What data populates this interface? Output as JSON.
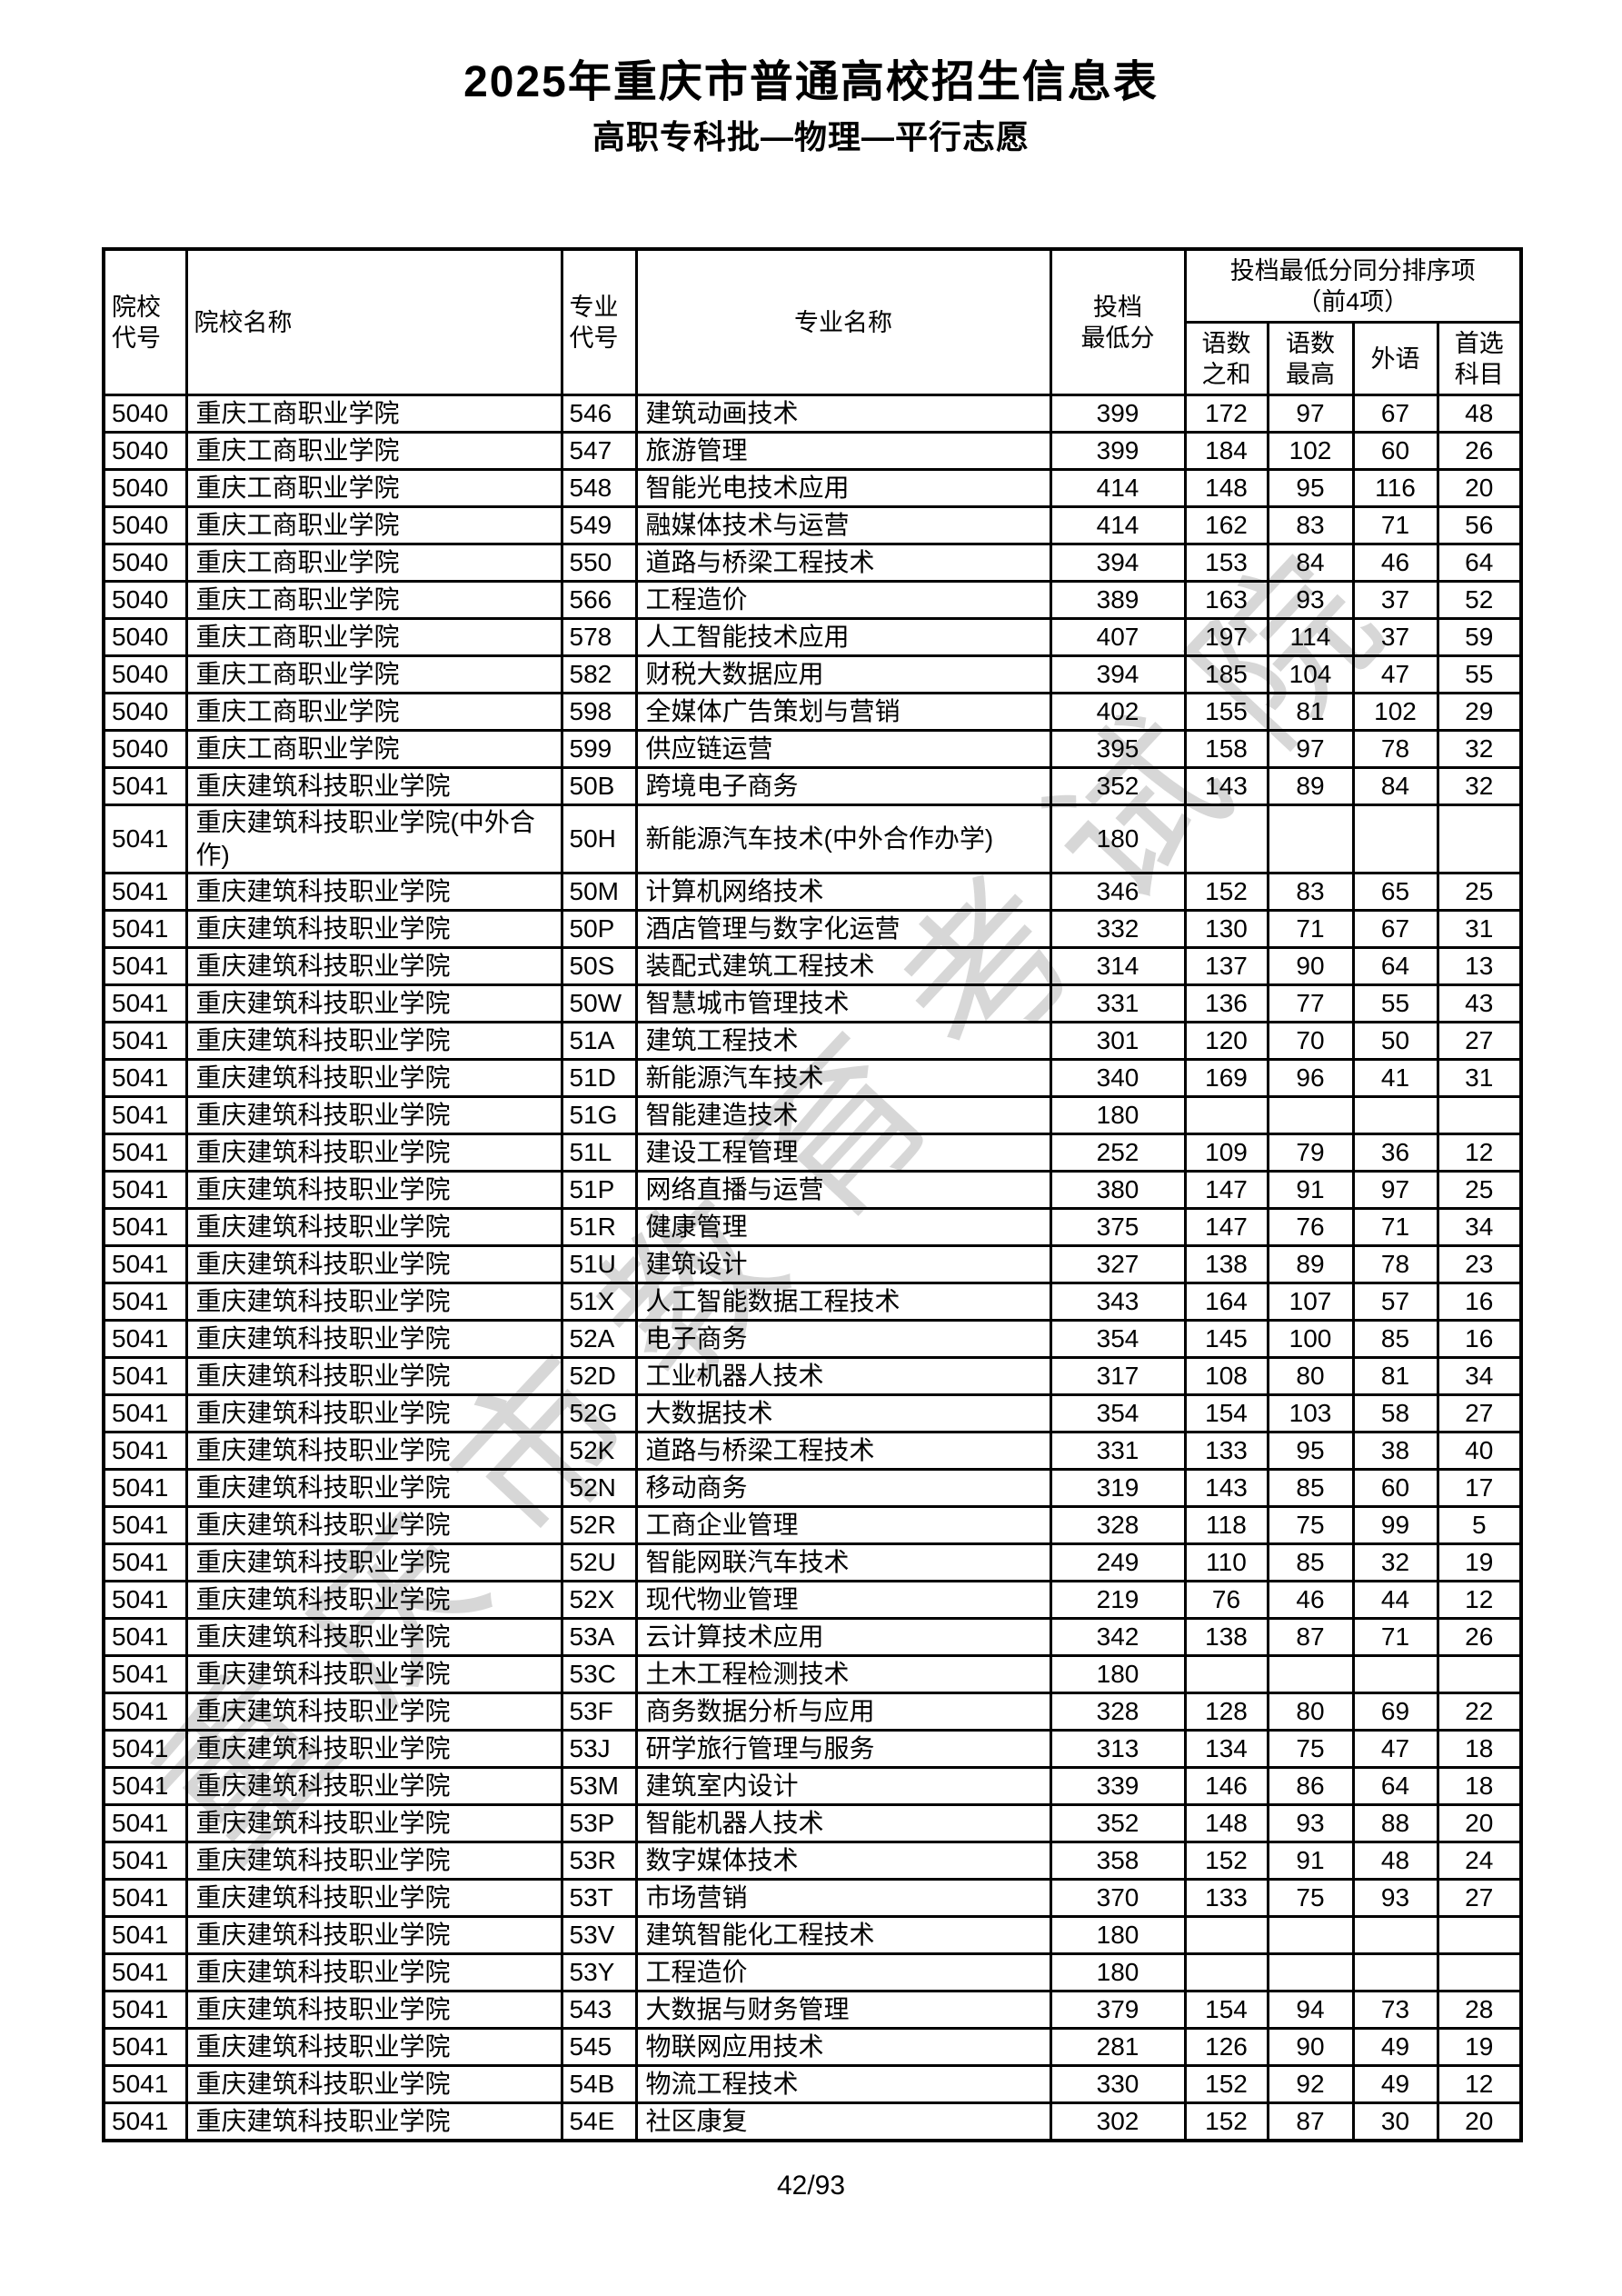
{
  "page": {
    "title": "2025年重庆市普通高校招生信息表",
    "subtitle": "高职专科批—物理—平行志愿",
    "watermark": "重庆市教育考试院",
    "page_number": "42/93"
  },
  "table": {
    "header": {
      "college_code": "院校\n代号",
      "college_name": "院校名称",
      "major_code": "专业\n代号",
      "major_name": "专业名称",
      "min_score": "投档\n最低分",
      "tie_break_group": "投档最低分同分排序项\n（前4项）",
      "tie_break_cols": [
        "语数\n之和",
        "语数\n最高",
        "外语",
        "首选\n科目"
      ]
    },
    "rows": [
      [
        "5040",
        "重庆工商职业学院",
        "546",
        "建筑动画技术",
        "399",
        "172",
        "97",
        "67",
        "48"
      ],
      [
        "5040",
        "重庆工商职业学院",
        "547",
        "旅游管理",
        "399",
        "184",
        "102",
        "60",
        "26"
      ],
      [
        "5040",
        "重庆工商职业学院",
        "548",
        "智能光电技术应用",
        "414",
        "148",
        "95",
        "116",
        "20"
      ],
      [
        "5040",
        "重庆工商职业学院",
        "549",
        "融媒体技术与运营",
        "414",
        "162",
        "83",
        "71",
        "56"
      ],
      [
        "5040",
        "重庆工商职业学院",
        "550",
        "道路与桥梁工程技术",
        "394",
        "153",
        "84",
        "46",
        "64"
      ],
      [
        "5040",
        "重庆工商职业学院",
        "566",
        "工程造价",
        "389",
        "163",
        "93",
        "37",
        "52"
      ],
      [
        "5040",
        "重庆工商职业学院",
        "578",
        "人工智能技术应用",
        "407",
        "197",
        "114",
        "37",
        "59"
      ],
      [
        "5040",
        "重庆工商职业学院",
        "582",
        "财税大数据应用",
        "394",
        "185",
        "104",
        "47",
        "55"
      ],
      [
        "5040",
        "重庆工商职业学院",
        "598",
        "全媒体广告策划与营销",
        "402",
        "155",
        "81",
        "102",
        "29"
      ],
      [
        "5040",
        "重庆工商职业学院",
        "599",
        "供应链运营",
        "395",
        "158",
        "97",
        "78",
        "32"
      ],
      [
        "5041",
        "重庆建筑科技职业学院",
        "50B",
        "跨境电子商务",
        "352",
        "143",
        "89",
        "84",
        "32"
      ],
      [
        "5041",
        "重庆建筑科技职业学院(中外合作)",
        "50H",
        "新能源汽车技术(中外合作办学)",
        "180",
        "",
        "",
        "",
        ""
      ],
      [
        "5041",
        "重庆建筑科技职业学院",
        "50M",
        "计算机网络技术",
        "346",
        "152",
        "83",
        "65",
        "25"
      ],
      [
        "5041",
        "重庆建筑科技职业学院",
        "50P",
        "酒店管理与数字化运营",
        "332",
        "130",
        "71",
        "67",
        "31"
      ],
      [
        "5041",
        "重庆建筑科技职业学院",
        "50S",
        "装配式建筑工程技术",
        "314",
        "137",
        "90",
        "64",
        "13"
      ],
      [
        "5041",
        "重庆建筑科技职业学院",
        "50W",
        "智慧城市管理技术",
        "331",
        "136",
        "77",
        "55",
        "43"
      ],
      [
        "5041",
        "重庆建筑科技职业学院",
        "51A",
        "建筑工程技术",
        "301",
        "120",
        "70",
        "50",
        "27"
      ],
      [
        "5041",
        "重庆建筑科技职业学院",
        "51D",
        "新能源汽车技术",
        "340",
        "169",
        "96",
        "41",
        "31"
      ],
      [
        "5041",
        "重庆建筑科技职业学院",
        "51G",
        "智能建造技术",
        "180",
        "",
        "",
        "",
        ""
      ],
      [
        "5041",
        "重庆建筑科技职业学院",
        "51L",
        "建设工程管理",
        "252",
        "109",
        "79",
        "36",
        "12"
      ],
      [
        "5041",
        "重庆建筑科技职业学院",
        "51P",
        "网络直播与运营",
        "380",
        "147",
        "91",
        "97",
        "25"
      ],
      [
        "5041",
        "重庆建筑科技职业学院",
        "51R",
        "健康管理",
        "375",
        "147",
        "76",
        "71",
        "34"
      ],
      [
        "5041",
        "重庆建筑科技职业学院",
        "51U",
        "建筑设计",
        "327",
        "138",
        "89",
        "78",
        "23"
      ],
      [
        "5041",
        "重庆建筑科技职业学院",
        "51X",
        "人工智能数据工程技术",
        "343",
        "164",
        "107",
        "57",
        "16"
      ],
      [
        "5041",
        "重庆建筑科技职业学院",
        "52A",
        "电子商务",
        "354",
        "145",
        "100",
        "85",
        "16"
      ],
      [
        "5041",
        "重庆建筑科技职业学院",
        "52D",
        "工业机器人技术",
        "317",
        "108",
        "80",
        "81",
        "34"
      ],
      [
        "5041",
        "重庆建筑科技职业学院",
        "52G",
        "大数据技术",
        "354",
        "154",
        "103",
        "58",
        "27"
      ],
      [
        "5041",
        "重庆建筑科技职业学院",
        "52K",
        "道路与桥梁工程技术",
        "331",
        "133",
        "95",
        "38",
        "40"
      ],
      [
        "5041",
        "重庆建筑科技职业学院",
        "52N",
        "移动商务",
        "319",
        "143",
        "85",
        "60",
        "17"
      ],
      [
        "5041",
        "重庆建筑科技职业学院",
        "52R",
        "工商企业管理",
        "328",
        "118",
        "75",
        "99",
        "5"
      ],
      [
        "5041",
        "重庆建筑科技职业学院",
        "52U",
        "智能网联汽车技术",
        "249",
        "110",
        "85",
        "32",
        "19"
      ],
      [
        "5041",
        "重庆建筑科技职业学院",
        "52X",
        "现代物业管理",
        "219",
        "76",
        "46",
        "44",
        "12"
      ],
      [
        "5041",
        "重庆建筑科技职业学院",
        "53A",
        "云计算技术应用",
        "342",
        "138",
        "87",
        "71",
        "26"
      ],
      [
        "5041",
        "重庆建筑科技职业学院",
        "53C",
        "土木工程检测技术",
        "180",
        "",
        "",
        "",
        ""
      ],
      [
        "5041",
        "重庆建筑科技职业学院",
        "53F",
        "商务数据分析与应用",
        "328",
        "128",
        "80",
        "69",
        "22"
      ],
      [
        "5041",
        "重庆建筑科技职业学院",
        "53J",
        "研学旅行管理与服务",
        "313",
        "134",
        "75",
        "47",
        "18"
      ],
      [
        "5041",
        "重庆建筑科技职业学院",
        "53M",
        "建筑室内设计",
        "339",
        "146",
        "86",
        "64",
        "18"
      ],
      [
        "5041",
        "重庆建筑科技职业学院",
        "53P",
        "智能机器人技术",
        "352",
        "148",
        "93",
        "88",
        "20"
      ],
      [
        "5041",
        "重庆建筑科技职业学院",
        "53R",
        "数字媒体技术",
        "358",
        "152",
        "91",
        "48",
        "24"
      ],
      [
        "5041",
        "重庆建筑科技职业学院",
        "53T",
        "市场营销",
        "370",
        "133",
        "75",
        "93",
        "27"
      ],
      [
        "5041",
        "重庆建筑科技职业学院",
        "53V",
        "建筑智能化工程技术",
        "180",
        "",
        "",
        "",
        ""
      ],
      [
        "5041",
        "重庆建筑科技职业学院",
        "53Y",
        "工程造价",
        "180",
        "",
        "",
        "",
        ""
      ],
      [
        "5041",
        "重庆建筑科技职业学院",
        "543",
        "大数据与财务管理",
        "379",
        "154",
        "94",
        "73",
        "28"
      ],
      [
        "5041",
        "重庆建筑科技职业学院",
        "545",
        "物联网应用技术",
        "281",
        "126",
        "90",
        "49",
        "19"
      ],
      [
        "5041",
        "重庆建筑科技职业学院",
        "54B",
        "物流工程技术",
        "330",
        "152",
        "92",
        "49",
        "12"
      ],
      [
        "5041",
        "重庆建筑科技职业学院",
        "54E",
        "社区康复",
        "302",
        "152",
        "87",
        "30",
        "20"
      ]
    ]
  }
}
